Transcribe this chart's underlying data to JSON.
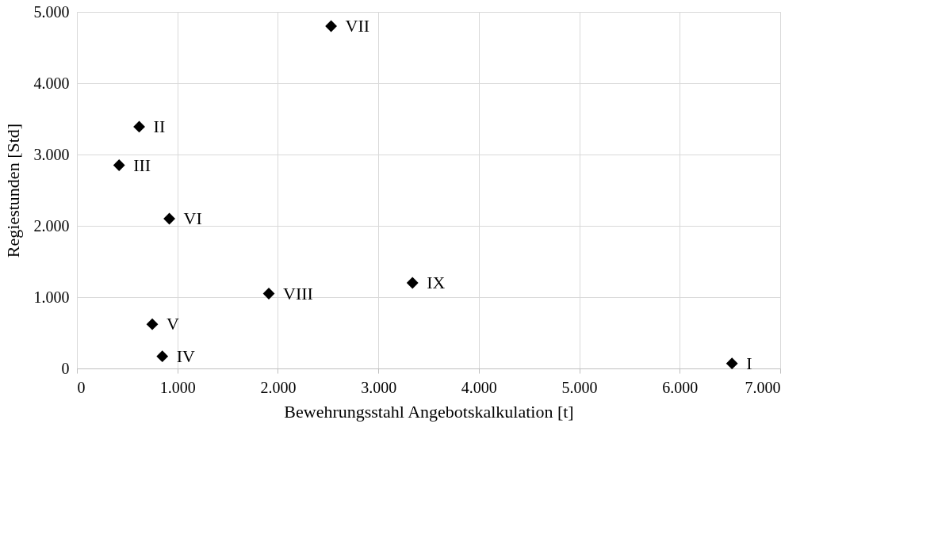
{
  "chart_data": {
    "type": "scatter",
    "xlabel": "Bewehrungsstahl Angebotskalkulation [t]",
    "ylabel": "Regiestunden [Std]",
    "x": [
      6520,
      620,
      420,
      850,
      750,
      920,
      2530,
      1910,
      3340
    ],
    "series": [
      {
        "color": "#000000",
        "values": [
          70,
          3390,
          2850,
          170,
          620,
          2100,
          4800,
          1050,
          1200
        ]
      }
    ],
    "xlim": [
      0,
      7000
    ],
    "xticks": [
      {
        "value": 0,
        "label": "0"
      },
      {
        "value": 1000,
        "label": "1.000"
      },
      {
        "value": 2000,
        "label": "2.000"
      },
      {
        "value": 3000,
        "label": "3.000"
      },
      {
        "value": 4000,
        "label": "4.000"
      },
      {
        "value": 5000,
        "label": "5.000"
      },
      {
        "value": 6000,
        "label": "6.000"
      },
      {
        "value": 7000,
        "label": "7.000"
      }
    ],
    "ylim": [
      0,
      5000
    ],
    "yticks": [
      {
        "value": 0,
        "label": "0"
      },
      {
        "value": 1000,
        "label": "1.000"
      },
      {
        "value": 2000,
        "label": "2.000"
      },
      {
        "value": 3000,
        "label": "3.000"
      },
      {
        "value": 4000,
        "label": "4.000"
      },
      {
        "value": 5000,
        "label": "5.000"
      }
    ],
    "annotations": [
      {
        "text": "I",
        "x": 6520,
        "y": 70
      },
      {
        "text": "II",
        "x": 620,
        "y": 3390
      },
      {
        "text": "III",
        "x": 420,
        "y": 2850
      },
      {
        "text": "IV",
        "x": 850,
        "y": 170
      },
      {
        "text": "V",
        "x": 750,
        "y": 620
      },
      {
        "text": "VI",
        "x": 920,
        "y": 2100
      },
      {
        "text": "VII",
        "x": 2530,
        "y": 4800
      },
      {
        "text": "VIII",
        "x": 1910,
        "y": 1050
      },
      {
        "text": "IX",
        "x": 3340,
        "y": 1200
      }
    ],
    "grid": true,
    "legend": false,
    "marker": "diamond"
  }
}
